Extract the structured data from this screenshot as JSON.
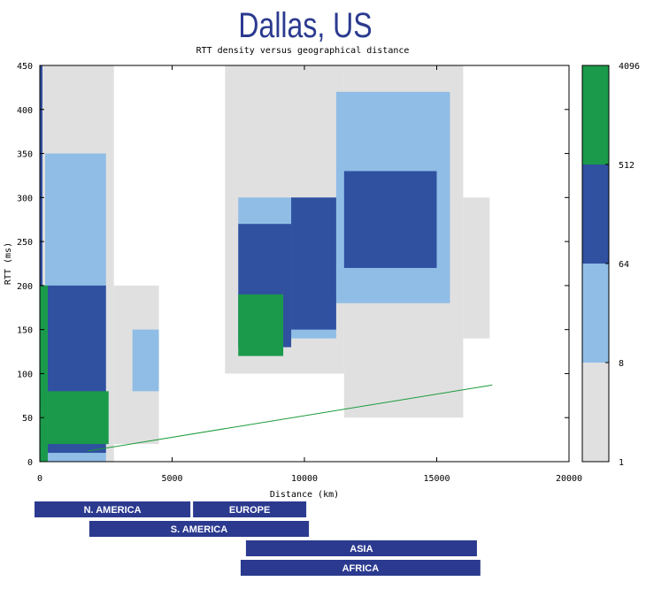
{
  "chart_data": {
    "type": "heatmap",
    "title": "Dallas, US",
    "subtitle": "RTT density versus geographical distance",
    "xlabel": "Distance (km)",
    "ylabel": "RTT (ms)",
    "xlim": [
      0,
      20000
    ],
    "ylim": [
      0,
      450
    ],
    "xticks": [
      0,
      5000,
      10000,
      15000,
      20000
    ],
    "yticks": [
      0,
      50,
      100,
      150,
      200,
      250,
      300,
      350,
      400,
      450
    ],
    "colorbar": {
      "lim": [
        1,
        4096
      ],
      "ticks": [
        1,
        8,
        64,
        512,
        4096
      ],
      "log": true,
      "colors": [
        "#e0e0e0",
        "#8fbde6",
        "#3050a0",
        "#1a9a4a"
      ]
    },
    "patches": [
      {
        "x": [
          0,
          2800
        ],
        "y": [
          0,
          450
        ],
        "density": 1
      },
      {
        "x": [
          2800,
          4500
        ],
        "y": [
          20,
          200
        ],
        "density": 1
      },
      {
        "x": [
          7000,
          11500
        ],
        "y": [
          100,
          450
        ],
        "density": 1
      },
      {
        "x": [
          11500,
          16000
        ],
        "y": [
          50,
          450
        ],
        "density": 1
      },
      {
        "x": [
          16000,
          17000
        ],
        "y": [
          140,
          300
        ],
        "density": 1
      },
      {
        "x": [
          200,
          2500
        ],
        "y": [
          0,
          350
        ],
        "density": 8
      },
      {
        "x": [
          3500,
          4500
        ],
        "y": [
          80,
          150
        ],
        "density": 8
      },
      {
        "x": [
          7500,
          11200
        ],
        "y": [
          140,
          300
        ],
        "density": 8
      },
      {
        "x": [
          11200,
          15500
        ],
        "y": [
          180,
          420
        ],
        "density": 8
      },
      {
        "x": [
          0,
          100
        ],
        "y": [
          0,
          450
        ],
        "density": 64
      },
      {
        "x": [
          300,
          2500
        ],
        "y": [
          10,
          200
        ],
        "density": 64
      },
      {
        "x": [
          7500,
          9500
        ],
        "y": [
          130,
          270
        ],
        "density": 64
      },
      {
        "x": [
          9500,
          11200
        ],
        "y": [
          150,
          300
        ],
        "density": 64
      },
      {
        "x": [
          11500,
          15000
        ],
        "y": [
          220,
          330
        ],
        "density": 64
      },
      {
        "x": [
          0,
          300
        ],
        "y": [
          0,
          200
        ],
        "density": 512
      },
      {
        "x": [
          300,
          2600
        ],
        "y": [
          20,
          80
        ],
        "density": 512
      },
      {
        "x": [
          7500,
          9200
        ],
        "y": [
          120,
          190
        ],
        "density": 512
      }
    ],
    "line": {
      "color": "#1a9a3a",
      "x": [
        1800,
        17100
      ],
      "y": [
        12,
        87
      ]
    },
    "regions": [
      {
        "name": "N. AMERICA",
        "range": [
          -200,
          5690
        ]
      },
      {
        "name": "EUROPE",
        "range": [
          5790,
          10070
        ]
      },
      {
        "name": "S. AMERICA",
        "range": [
          1870,
          10170
        ]
      },
      {
        "name": "ASIA",
        "range": [
          7790,
          16520
        ]
      },
      {
        "name": "AFRICA",
        "range": [
          7590,
          16650
        ]
      }
    ],
    "region_color": "#2b3a8f"
  }
}
